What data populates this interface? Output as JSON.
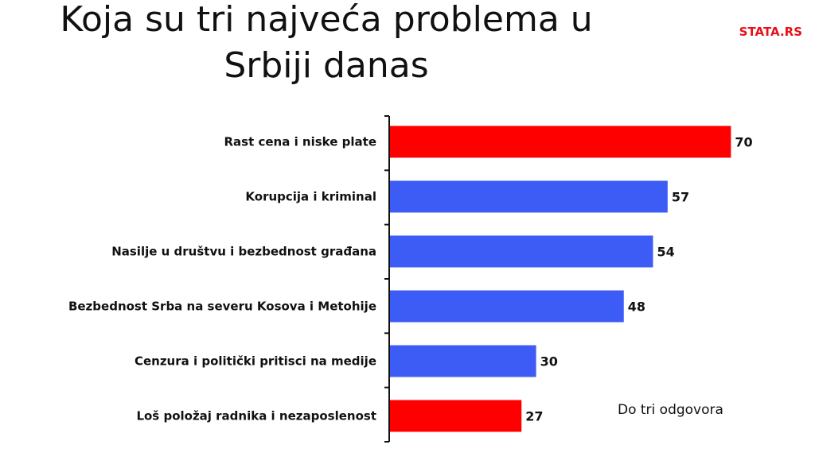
{
  "header": {
    "title": "Koja su tri najveća problema u Srbiji danas",
    "brand": "STATA.RS"
  },
  "note": "Do tri odgovora",
  "colors": {
    "highlight": "#ff0000",
    "default": "#3d5cf5",
    "axis": "#111111"
  },
  "chart_data": {
    "type": "bar",
    "orientation": "horizontal",
    "title": "Koja su tri najveća problema u Srbiji danas",
    "categories": [
      "Rast cena i niske plate",
      "Korupcija i kriminal",
      "Nasilje u društvu i bezbednost građana",
      "Bezbednost Srba na severu Kosova i Metohije",
      "Cenzura i politički pritisci na medije",
      "Loš položaj radnika i nezaposlenost"
    ],
    "values": [
      70,
      57,
      54,
      48,
      30,
      27
    ],
    "bar_colors": [
      "#ff0000",
      "#3d5cf5",
      "#3d5cf5",
      "#3d5cf5",
      "#3d5cf5",
      "#ff0000"
    ],
    "data_labels": [
      "70",
      "57",
      "54",
      "48",
      "30",
      "27"
    ],
    "xlim": [
      0,
      80
    ],
    "grid": false,
    "legend": "none"
  }
}
